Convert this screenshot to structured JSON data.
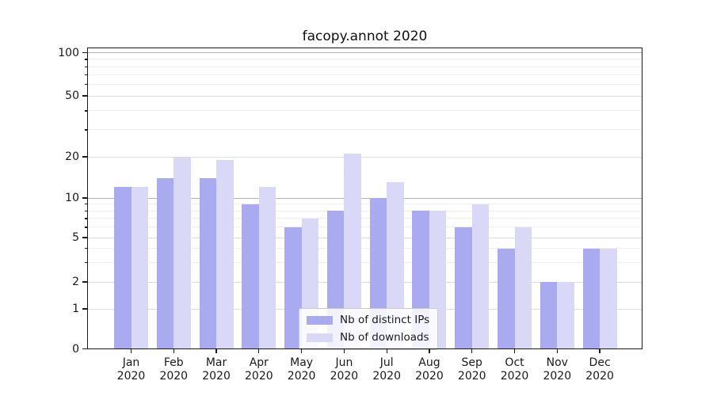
{
  "chart_data": {
    "type": "bar",
    "title": "facopy.annot 2020",
    "categories": [
      "Jan 2020",
      "Feb 2020",
      "Mar 2020",
      "Apr 2020",
      "May 2020",
      "Jun 2020",
      "Jul 2020",
      "Aug 2020",
      "Sep 2020",
      "Oct 2020",
      "Nov 2020",
      "Dec 2020"
    ],
    "series": [
      {
        "name": "Nb of distinct IPs",
        "color": "#aaaaf0",
        "values": [
          12,
          14,
          14,
          9,
          6,
          8,
          10,
          8,
          6,
          4,
          2,
          4
        ]
      },
      {
        "name": "Nb of downloads",
        "color": "#d9d9f7",
        "values": [
          12,
          20,
          19,
          12,
          7,
          21,
          13,
          8,
          9,
          6,
          2,
          4
        ]
      }
    ],
    "yscale": "symlog",
    "yticks": [
      0,
      1,
      2,
      5,
      10,
      20,
      50,
      100
    ],
    "y_minor_ticks": [
      3,
      4,
      6,
      7,
      8,
      9,
      30,
      40,
      60,
      70,
      80,
      90
    ],
    "ylim": [
      0,
      115
    ],
    "xlabel": "",
    "ylabel": "",
    "grid": true,
    "legend_position": "lower center"
  }
}
